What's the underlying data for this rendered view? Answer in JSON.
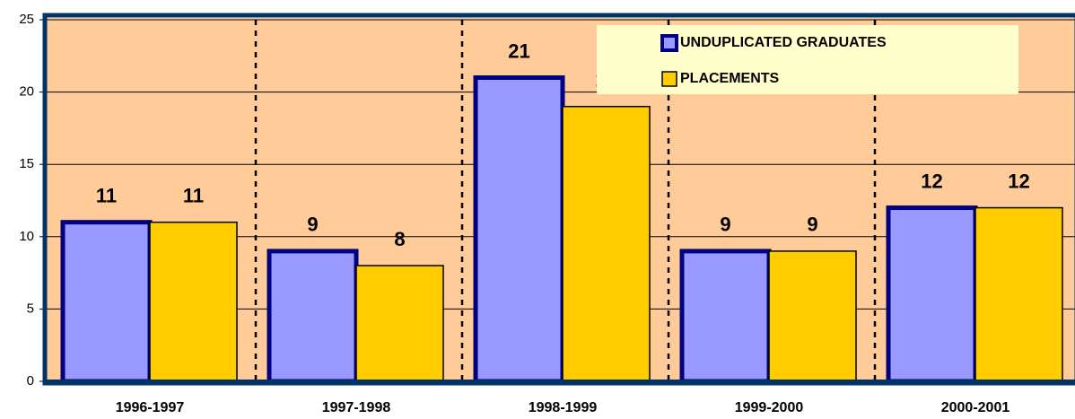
{
  "chart_data": {
    "type": "bar",
    "categories": [
      "1996-1997",
      "1997-1998",
      "1998-1999",
      "1999-2000",
      "2000-2001"
    ],
    "series": [
      {
        "name": "UNDUPLICATED GRADUATES",
        "color": "#9999ff",
        "values": [
          11,
          9,
          21,
          9,
          12
        ]
      },
      {
        "name": "PLACEMENTS",
        "color": "#ffcc00",
        "values": [
          11,
          8,
          19,
          9,
          12
        ]
      }
    ],
    "ylim": [
      0,
      25
    ],
    "yticks": [
      0,
      5,
      10,
      15,
      20,
      25
    ],
    "grid": true,
    "legend": "top-right"
  }
}
